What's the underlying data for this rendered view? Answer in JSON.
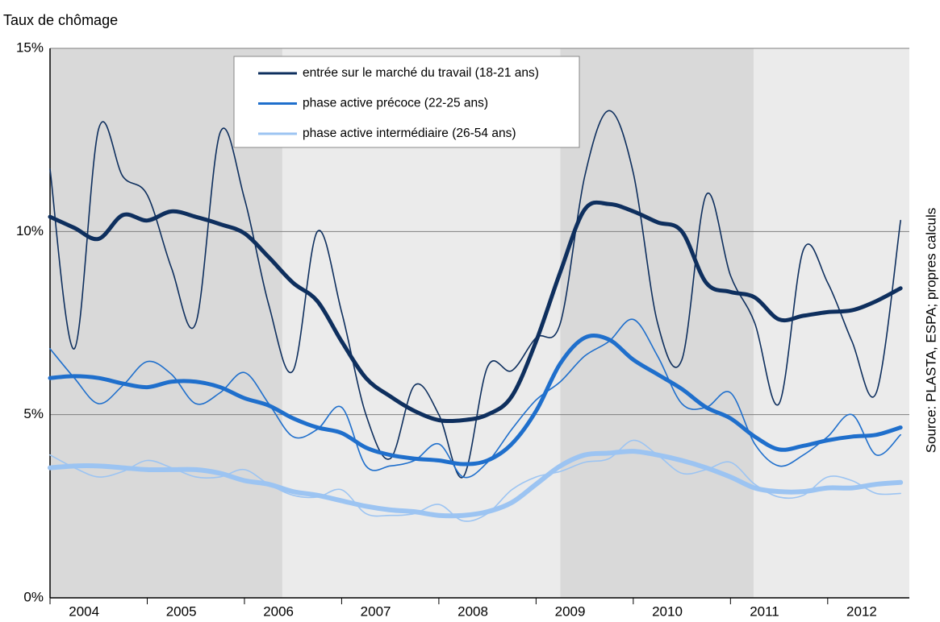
{
  "chart_data": {
    "type": "line",
    "title": "Taux de chômage",
    "source": "Source: PLASTA, ESPA; propres calculs",
    "x": [
      2004,
      2004.25,
      2004.5,
      2004.75,
      2005,
      2005.25,
      2005.5,
      2005.75,
      2006,
      2006.25,
      2006.5,
      2006.75,
      2007,
      2007.25,
      2007.5,
      2007.75,
      2008,
      2008.25,
      2008.5,
      2008.75,
      2009,
      2009.25,
      2009.5,
      2009.75,
      2010,
      2010.25,
      2010.5,
      2010.75,
      2011,
      2011.25,
      2011.5,
      2011.75,
      2012,
      2012.25,
      2012.5,
      2012.75
    ],
    "xlim": [
      2004,
      2012.84
    ],
    "xticks": [
      2004,
      2005,
      2006,
      2007,
      2008,
      2009,
      2010,
      2011,
      2012
    ],
    "ylim": [
      0,
      15
    ],
    "yticks": [
      {
        "value": 0,
        "label": "0%"
      },
      {
        "value": 5,
        "label": "5%"
      },
      {
        "value": 10,
        "label": "10%"
      },
      {
        "value": 15,
        "label": "15%"
      }
    ],
    "grid": true,
    "legend": "top",
    "shading": [
      {
        "from": 2004,
        "to": 2006.39,
        "color": "#d9d9d9"
      },
      {
        "from": 2006.39,
        "to": 2009.25,
        "color": "#ebebeb"
      },
      {
        "from": 2009.25,
        "to": 2011.24,
        "color": "#d9d9d9"
      },
      {
        "from": 2011.24,
        "to": 2012.84,
        "color": "#ebebeb"
      }
    ],
    "series": [
      {
        "name": "entrée sur le marché du travail (18-21 ans)",
        "color": "#0e2f5e",
        "values": [
          10.4,
          10.1,
          9.8,
          10.45,
          10.3,
          10.55,
          10.4,
          10.2,
          9.95,
          9.3,
          8.6,
          8.1,
          7.0,
          6.0,
          5.5,
          5.1,
          4.85,
          4.85,
          5.0,
          5.5,
          7.0,
          8.9,
          10.6,
          10.75,
          10.55,
          10.25,
          10.0,
          8.6,
          8.35,
          8.2,
          7.6,
          7.7,
          7.8,
          7.85,
          8.1,
          8.45
        ],
        "raw_values": [
          11.7,
          6.8,
          12.8,
          11.5,
          11.0,
          9.0,
          7.5,
          12.7,
          10.9,
          8.0,
          6.2,
          10.0,
          7.8,
          5.0,
          3.8,
          5.8,
          5.0,
          3.3,
          6.3,
          6.2,
          7.1,
          7.5,
          11.5,
          13.3,
          11.6,
          7.5,
          6.5,
          11.0,
          8.8,
          7.5,
          5.3,
          9.5,
          8.6,
          7.0,
          5.6,
          10.3
        ]
      },
      {
        "name": "phase active précoce (22-25 ans)",
        "color": "#1f6fcc",
        "values": [
          6.0,
          6.05,
          6.0,
          5.85,
          5.75,
          5.9,
          5.9,
          5.75,
          5.45,
          5.25,
          4.9,
          4.65,
          4.5,
          4.1,
          3.9,
          3.8,
          3.75,
          3.65,
          3.75,
          4.2,
          5.1,
          6.4,
          7.1,
          7.05,
          6.5,
          6.1,
          5.7,
          5.2,
          4.9,
          4.4,
          4.05,
          4.15,
          4.3,
          4.4,
          4.45,
          4.65
        ],
        "raw_values": [
          6.8,
          6.0,
          5.3,
          5.8,
          6.45,
          6.1,
          5.3,
          5.6,
          6.15,
          5.3,
          4.4,
          4.6,
          5.2,
          3.6,
          3.6,
          3.75,
          4.2,
          3.3,
          3.7,
          4.6,
          5.4,
          5.9,
          6.6,
          7.0,
          7.6,
          6.6,
          5.3,
          5.2,
          5.6,
          4.2,
          3.6,
          3.9,
          4.4,
          5.0,
          3.9,
          4.45
        ]
      },
      {
        "name": "phase active intermédiaire (26-54 ans)",
        "color": "#9cc4f2",
        "values": [
          3.55,
          3.6,
          3.6,
          3.55,
          3.5,
          3.5,
          3.5,
          3.4,
          3.2,
          3.1,
          2.9,
          2.8,
          2.65,
          2.5,
          2.4,
          2.35,
          2.25,
          2.25,
          2.35,
          2.6,
          3.1,
          3.6,
          3.9,
          3.95,
          4.0,
          3.9,
          3.75,
          3.55,
          3.3,
          3.0,
          2.9,
          2.9,
          3.0,
          3.0,
          3.1,
          3.15
        ],
        "raw_values": [
          3.9,
          3.55,
          3.3,
          3.45,
          3.75,
          3.55,
          3.3,
          3.3,
          3.5,
          3.1,
          2.8,
          2.75,
          2.95,
          2.3,
          2.25,
          2.3,
          2.55,
          2.1,
          2.3,
          2.95,
          3.3,
          3.45,
          3.7,
          3.8,
          4.3,
          3.9,
          3.4,
          3.5,
          3.7,
          3.1,
          2.75,
          2.8,
          3.3,
          3.2,
          2.85,
          2.85
        ]
      }
    ]
  }
}
